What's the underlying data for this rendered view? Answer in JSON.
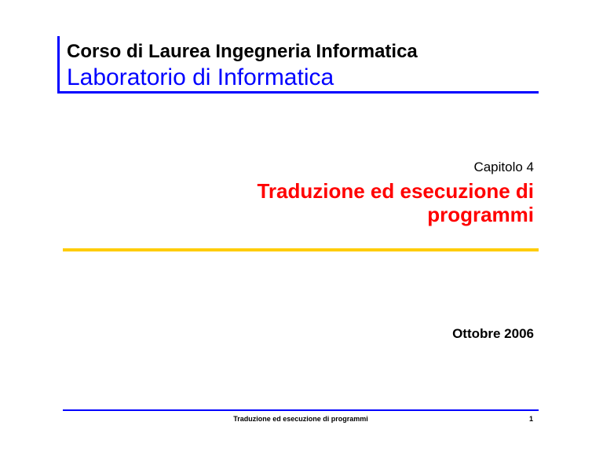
{
  "header": {
    "course": "Corso di Laurea Ingegneria Informatica",
    "lab": "Laboratorio di Informatica"
  },
  "chapter": {
    "label": "Capitolo 4",
    "title_line1": "Traduzione ed esecuzione di",
    "title_line2": "programmi"
  },
  "date": "Ottobre 2006",
  "footer": {
    "text": "Traduzione ed esecuzione di programmi",
    "page": "1"
  },
  "colors": {
    "accent_blue": "#0000ff",
    "title_red": "#ff0000",
    "divider_yellow": "#ffcc00"
  }
}
